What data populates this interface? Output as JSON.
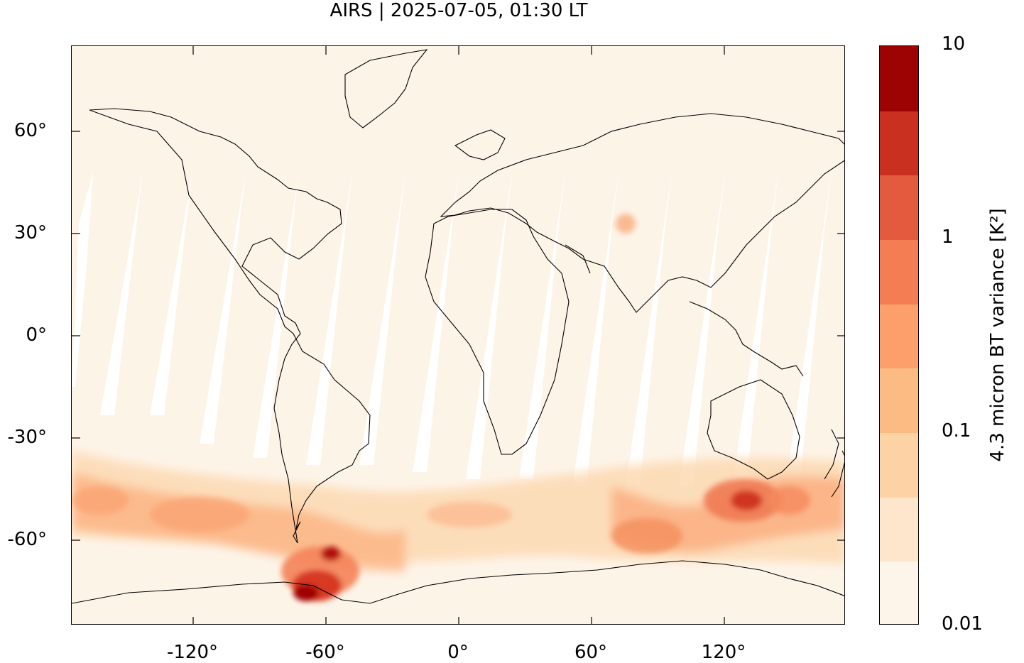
{
  "title": "AIRS | 2025-07-05, 01:30 LT",
  "map": {
    "lon_range": [
      -175,
      175
    ],
    "lat_range": [
      -85,
      85
    ],
    "y_ticks": [
      "60°",
      "30°",
      "0°",
      "-30°",
      "-60°"
    ],
    "x_ticks": [
      "-120°",
      "-60°",
      "0°",
      "60°",
      "120°"
    ]
  },
  "colorbar": {
    "title": "4.3 micron BT variance [K²]",
    "labels": [
      "10",
      "1",
      "0.1",
      "0.01"
    ],
    "scale": "log",
    "range": [
      0.01,
      10
    ],
    "colors": [
      "#fef5ea",
      "#fde6cc",
      "#fdd2a5",
      "#fdbb84",
      "#fc9f6a",
      "#f47d54",
      "#e35a3e",
      "#c9301f",
      "#9d0303"
    ]
  }
}
